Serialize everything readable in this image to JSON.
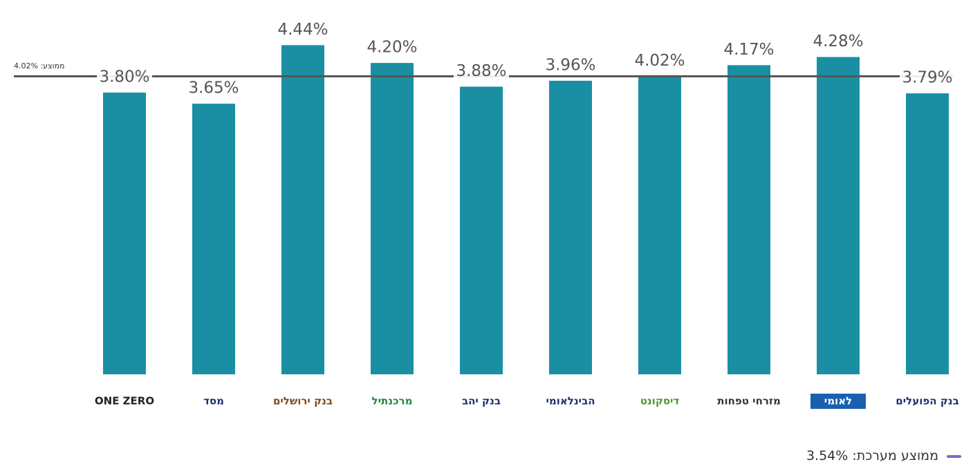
{
  "chart_data": {
    "type": "bar",
    "categories": [
      "ONE ZERO",
      "מסד",
      "בנק ירושלים",
      "מרכנתיל",
      "בנק יהב",
      "הבינלאומי",
      "דיסקונט",
      "מזרחי טפחות",
      "לאומי",
      "בנק הפועלים"
    ],
    "category_colors": [
      "#222222",
      "#1d2f6f",
      "#7a4a22",
      "#1a8a3a",
      "#1d2f6f",
      "#1d2f6f",
      "#4a9a2a",
      "#333333",
      "#1a5fb0",
      "#1d2f6f"
    ],
    "values": [
      3.8,
      3.65,
      4.44,
      4.2,
      3.88,
      3.96,
      4.02,
      4.17,
      4.28,
      3.79
    ],
    "value_labels": [
      "3.80%",
      "3.65%",
      "4.44%",
      "4.20%",
      "3.88%",
      "3.96%",
      "4.02%",
      "4.17%",
      "4.28%",
      "3.79%"
    ],
    "color": "#1a8fa3",
    "ylim": [
      0,
      4.9
    ],
    "reference_line": {
      "value": 4.02,
      "label": "ממוצע: 4.02%",
      "color": "#555555"
    },
    "legend_note": {
      "label": "ממוצע מערכת: 3.54%",
      "color": "#7b68c4"
    }
  }
}
